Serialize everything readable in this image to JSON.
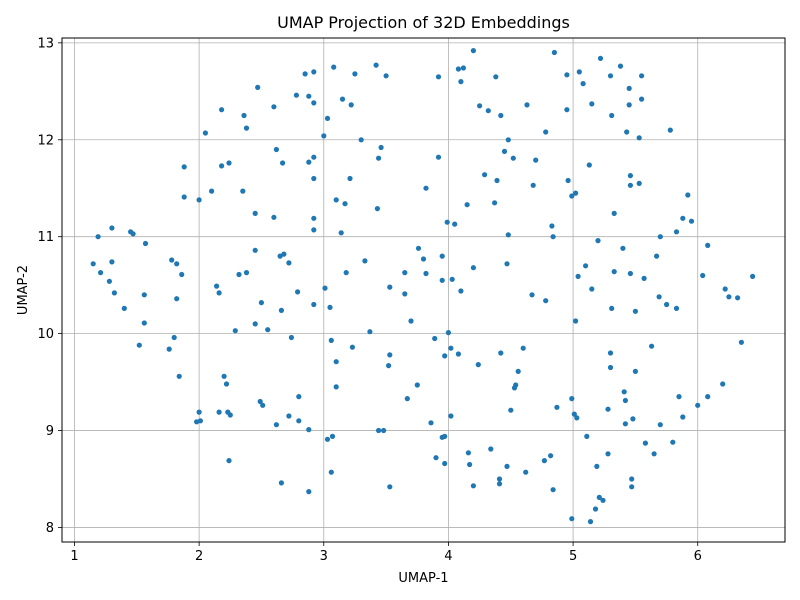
{
  "chart_data": {
    "type": "scatter",
    "title": "UMAP Projection of 32D Embeddings",
    "xlabel": "UMAP-1",
    "ylabel": "UMAP-2",
    "xlim": [
      0.9,
      6.7
    ],
    "ylim": [
      7.85,
      13.05
    ],
    "xticks": [
      1,
      2,
      3,
      4,
      5,
      6
    ],
    "yticks": [
      8,
      9,
      10,
      11,
      12,
      13
    ],
    "grid": true,
    "point_color": "#1f77b4",
    "points": [
      [
        4.2,
        12.92
      ],
      [
        4.85,
        12.9
      ],
      [
        5.22,
        12.84
      ],
      [
        3.42,
        12.77
      ],
      [
        3.08,
        12.75
      ],
      [
        4.08,
        12.73
      ],
      [
        4.12,
        12.74
      ],
      [
        5.38,
        12.76
      ],
      [
        2.92,
        12.7
      ],
      [
        2.85,
        12.68
      ],
      [
        3.25,
        12.68
      ],
      [
        3.5,
        12.66
      ],
      [
        3.92,
        12.65
      ],
      [
        4.38,
        12.65
      ],
      [
        4.95,
        12.67
      ],
      [
        5.05,
        12.7
      ],
      [
        5.3,
        12.66
      ],
      [
        5.55,
        12.66
      ],
      [
        5.08,
        12.58
      ],
      [
        4.1,
        12.6
      ],
      [
        2.47,
        12.54
      ],
      [
        5.45,
        12.53
      ],
      [
        2.78,
        12.46
      ],
      [
        2.88,
        12.45
      ],
      [
        3.15,
        12.42
      ],
      [
        5.55,
        12.42
      ],
      [
        2.92,
        12.38
      ],
      [
        3.22,
        12.36
      ],
      [
        4.25,
        12.35
      ],
      [
        4.63,
        12.36
      ],
      [
        5.15,
        12.37
      ],
      [
        5.45,
        12.36
      ],
      [
        2.6,
        12.34
      ],
      [
        2.18,
        12.31
      ],
      [
        4.95,
        12.31
      ],
      [
        4.32,
        12.3
      ],
      [
        4.42,
        12.25
      ],
      [
        5.31,
        12.25
      ],
      [
        2.36,
        12.25
      ],
      [
        3.03,
        12.22
      ],
      [
        2.38,
        12.12
      ],
      [
        4.78,
        12.08
      ],
      [
        5.43,
        12.08
      ],
      [
        5.78,
        12.1
      ],
      [
        2.05,
        12.07
      ],
      [
        3.0,
        12.04
      ],
      [
        3.3,
        12.0
      ],
      [
        4.48,
        12.0
      ],
      [
        5.53,
        12.02
      ],
      [
        3.46,
        11.92
      ],
      [
        2.62,
        11.9
      ],
      [
        4.45,
        11.88
      ],
      [
        3.92,
        11.82
      ],
      [
        2.92,
        11.82
      ],
      [
        3.44,
        11.81
      ],
      [
        4.52,
        11.81
      ],
      [
        4.7,
        11.79
      ],
      [
        2.24,
        11.76
      ],
      [
        2.88,
        11.77
      ],
      [
        2.18,
        11.73
      ],
      [
        2.67,
        11.76
      ],
      [
        1.88,
        11.72
      ],
      [
        5.13,
        11.74
      ],
      [
        4.29,
        11.64
      ],
      [
        5.46,
        11.63
      ],
      [
        3.21,
        11.6
      ],
      [
        2.92,
        11.6
      ],
      [
        4.39,
        11.58
      ],
      [
        4.96,
        11.58
      ],
      [
        5.53,
        11.55
      ],
      [
        4.68,
        11.53
      ],
      [
        5.46,
        11.53
      ],
      [
        3.82,
        11.5
      ],
      [
        2.1,
        11.47
      ],
      [
        2.35,
        11.47
      ],
      [
        5.02,
        11.45
      ],
      [
        4.99,
        11.42
      ],
      [
        5.92,
        11.43
      ],
      [
        1.88,
        11.41
      ],
      [
        2.0,
        11.38
      ],
      [
        3.1,
        11.38
      ],
      [
        3.17,
        11.34
      ],
      [
        4.15,
        11.33
      ],
      [
        4.37,
        11.35
      ],
      [
        3.43,
        11.29
      ],
      [
        2.45,
        11.24
      ],
      [
        5.33,
        11.24
      ],
      [
        2.6,
        11.2
      ],
      [
        2.92,
        11.19
      ],
      [
        5.88,
        11.19
      ],
      [
        5.95,
        11.16
      ],
      [
        3.99,
        11.15
      ],
      [
        4.05,
        11.13
      ],
      [
        4.83,
        11.11
      ],
      [
        1.45,
        11.05
      ],
      [
        1.47,
        11.03
      ],
      [
        2.92,
        11.07
      ],
      [
        3.14,
        11.04
      ],
      [
        5.83,
        11.05
      ],
      [
        4.48,
        11.02
      ],
      [
        1.3,
        11.09
      ],
      [
        1.19,
        11.0
      ],
      [
        4.84,
        11.0
      ],
      [
        5.7,
        11.0
      ],
      [
        5.2,
        10.96
      ],
      [
        1.57,
        10.93
      ],
      [
        6.08,
        10.91
      ],
      [
        1.21,
        10.63
      ],
      [
        2.45,
        10.86
      ],
      [
        3.76,
        10.88
      ],
      [
        5.4,
        10.88
      ],
      [
        2.68,
        10.82
      ],
      [
        2.65,
        10.8
      ],
      [
        3.95,
        10.8
      ],
      [
        5.67,
        10.8
      ],
      [
        3.8,
        10.77
      ],
      [
        1.78,
        10.76
      ],
      [
        1.82,
        10.72
      ],
      [
        1.15,
        10.72
      ],
      [
        1.3,
        10.74
      ],
      [
        2.72,
        10.73
      ],
      [
        3.33,
        10.75
      ],
      [
        4.47,
        10.72
      ],
      [
        5.1,
        10.7
      ],
      [
        4.2,
        10.68
      ],
      [
        3.18,
        10.63
      ],
      [
        3.65,
        10.63
      ],
      [
        3.82,
        10.62
      ],
      [
        2.38,
        10.63
      ],
      [
        2.32,
        10.61
      ],
      [
        1.86,
        10.61
      ],
      [
        5.33,
        10.64
      ],
      [
        5.46,
        10.62
      ],
      [
        5.04,
        10.59
      ],
      [
        5.57,
        10.57
      ],
      [
        6.04,
        10.6
      ],
      [
        6.44,
        10.59
      ],
      [
        1.28,
        10.54
      ],
      [
        3.95,
        10.55
      ],
      [
        4.03,
        10.56
      ],
      [
        2.14,
        10.49
      ],
      [
        3.53,
        10.48
      ],
      [
        2.79,
        10.43
      ],
      [
        3.01,
        10.47
      ],
      [
        5.15,
        10.46
      ],
      [
        6.22,
        10.46
      ],
      [
        1.32,
        10.42
      ],
      [
        2.16,
        10.42
      ],
      [
        1.56,
        10.4
      ],
      [
        3.65,
        10.41
      ],
      [
        4.1,
        10.44
      ],
      [
        4.67,
        10.4
      ],
      [
        5.69,
        10.38
      ],
      [
        6.25,
        10.38
      ],
      [
        6.32,
        10.37
      ],
      [
        4.78,
        10.34
      ],
      [
        1.82,
        10.36
      ],
      [
        2.5,
        10.32
      ],
      [
        2.92,
        10.3
      ],
      [
        3.05,
        10.27
      ],
      [
        5.31,
        10.26
      ],
      [
        5.75,
        10.3
      ],
      [
        1.4,
        10.26
      ],
      [
        5.83,
        10.26
      ],
      [
        2.66,
        10.24
      ],
      [
        5.5,
        10.23
      ],
      [
        3.7,
        10.13
      ],
      [
        5.02,
        10.13
      ],
      [
        1.56,
        10.11
      ],
      [
        2.45,
        10.1
      ],
      [
        2.55,
        10.04
      ],
      [
        2.29,
        10.03
      ],
      [
        3.37,
        10.02
      ],
      [
        4.0,
        10.01
      ],
      [
        1.8,
        9.96
      ],
      [
        2.74,
        9.96
      ],
      [
        3.89,
        9.95
      ],
      [
        3.06,
        9.93
      ],
      [
        6.35,
        9.91
      ],
      [
        1.52,
        9.88
      ],
      [
        3.23,
        9.86
      ],
      [
        4.02,
        9.85
      ],
      [
        4.6,
        9.85
      ],
      [
        5.63,
        9.87
      ],
      [
        1.76,
        9.84
      ],
      [
        4.08,
        9.79
      ],
      [
        3.97,
        9.77
      ],
      [
        3.53,
        9.78
      ],
      [
        4.42,
        9.8
      ],
      [
        5.3,
        9.8
      ],
      [
        3.1,
        9.71
      ],
      [
        3.52,
        9.67
      ],
      [
        4.24,
        9.68
      ],
      [
        5.3,
        9.65
      ],
      [
        4.56,
        9.61
      ],
      [
        5.5,
        9.61
      ],
      [
        1.84,
        9.56
      ],
      [
        2.2,
        9.56
      ],
      [
        2.22,
        9.48
      ],
      [
        3.75,
        9.47
      ],
      [
        4.54,
        9.47
      ],
      [
        6.2,
        9.48
      ],
      [
        3.1,
        9.45
      ],
      [
        4.53,
        9.44
      ],
      [
        5.41,
        9.4
      ],
      [
        2.8,
        9.35
      ],
      [
        5.85,
        9.35
      ],
      [
        6.08,
        9.35
      ],
      [
        3.67,
        9.33
      ],
      [
        4.99,
        9.33
      ],
      [
        5.42,
        9.31
      ],
      [
        2.49,
        9.3
      ],
      [
        2.51,
        9.26
      ],
      [
        4.87,
        9.24
      ],
      [
        6.0,
        9.26
      ],
      [
        4.5,
        9.21
      ],
      [
        5.28,
        9.22
      ],
      [
        5.01,
        9.17
      ],
      [
        2.0,
        9.19
      ],
      [
        2.16,
        9.19
      ],
      [
        2.23,
        9.19
      ],
      [
        2.25,
        9.16
      ],
      [
        2.72,
        9.15
      ],
      [
        4.02,
        9.15
      ],
      [
        5.03,
        9.13
      ],
      [
        5.88,
        9.14
      ],
      [
        5.48,
        9.12
      ],
      [
        2.8,
        9.1
      ],
      [
        1.98,
        9.09
      ],
      [
        2.01,
        9.1
      ],
      [
        2.62,
        9.06
      ],
      [
        3.86,
        9.08
      ],
      [
        5.42,
        9.07
      ],
      [
        5.7,
        9.06
      ],
      [
        2.88,
        9.01
      ],
      [
        3.44,
        9.0
      ],
      [
        3.48,
        9.0
      ],
      [
        3.07,
        8.94
      ],
      [
        3.03,
        8.91
      ],
      [
        3.95,
        8.93
      ],
      [
        3.97,
        8.94
      ],
      [
        5.11,
        8.94
      ],
      [
        5.58,
        8.87
      ],
      [
        5.8,
        8.88
      ],
      [
        4.34,
        8.81
      ],
      [
        4.16,
        8.77
      ],
      [
        5.28,
        8.76
      ],
      [
        5.65,
        8.76
      ],
      [
        2.24,
        8.69
      ],
      [
        3.9,
        8.72
      ],
      [
        4.82,
        8.74
      ],
      [
        4.77,
        8.69
      ],
      [
        3.97,
        8.66
      ],
      [
        4.17,
        8.65
      ],
      [
        4.47,
        8.63
      ],
      [
        5.19,
        8.63
      ],
      [
        3.06,
        8.57
      ],
      [
        4.62,
        8.57
      ],
      [
        4.41,
        8.5
      ],
      [
        5.47,
        8.5
      ],
      [
        2.66,
        8.46
      ],
      [
        4.41,
        8.45
      ],
      [
        4.2,
        8.43
      ],
      [
        3.53,
        8.42
      ],
      [
        5.47,
        8.42
      ],
      [
        2.88,
        8.37
      ],
      [
        4.84,
        8.39
      ],
      [
        5.21,
        8.31
      ],
      [
        5.24,
        8.28
      ],
      [
        5.18,
        8.19
      ],
      [
        4.99,
        8.09
      ],
      [
        5.14,
        8.06
      ]
    ]
  }
}
